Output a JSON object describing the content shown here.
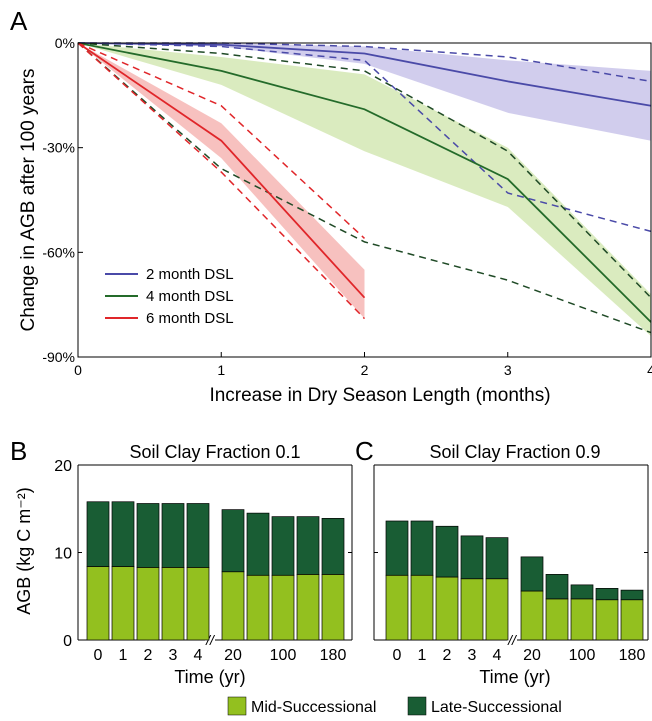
{
  "panels": {
    "A": "A",
    "B": "B",
    "C": "C"
  },
  "colors": {
    "dsl2": "#4a4aa8",
    "dsl2_band": "#c9c4ea",
    "dsl4": "#246b2a",
    "dsl4_band": "#d4e8b4",
    "dsl6": "#e0262a",
    "dsl6_band": "#f6b6b4",
    "dsl4_dash": "#1f4a26",
    "mid": "#93c01f",
    "late": "#195d34"
  },
  "chart_data": [
    {
      "type": "line",
      "panel": "A",
      "xlabel": "Increase in Dry Season Length (months)",
      "ylabel": "Change in AGB after 100 years",
      "xlim": [
        0,
        4
      ],
      "ylim": [
        -90,
        0
      ],
      "xticks": [
        "0",
        "1",
        "2",
        "3",
        "4"
      ],
      "yticks": [
        {
          "v": 0,
          "label": "0%"
        },
        {
          "v": -30,
          "label": "-30%"
        },
        {
          "v": -60,
          "label": "-60%"
        },
        {
          "v": -90,
          "label": "-90%"
        }
      ],
      "legend_position": "bottom-left",
      "series": [
        {
          "name": "2 month DSL",
          "color_key": "dsl2",
          "band_key": "dsl2_band",
          "x": [
            0,
            1,
            2,
            3,
            4
          ],
          "mean": [
            0,
            -0.5,
            -3,
            -11,
            -18
          ],
          "band_upper": [
            0,
            0,
            -1,
            -5,
            -8
          ],
          "band_lower": [
            0,
            -1,
            -6,
            -20,
            -28
          ],
          "dash_upper": [
            0,
            0,
            -1,
            -4,
            -11
          ],
          "dash_lower": [
            0,
            -1,
            -5,
            -43,
            -54
          ]
        },
        {
          "name": "4 month DSL",
          "color_key": "dsl4",
          "band_key": "dsl4_band",
          "x": [
            0,
            1,
            2,
            3,
            4
          ],
          "mean": [
            0,
            -8,
            -19,
            -39,
            -80
          ],
          "band_upper": [
            0,
            -4,
            -9,
            -30,
            -72
          ],
          "band_lower": [
            0,
            -12,
            -31,
            -47,
            -84
          ],
          "dash_upper": [
            0,
            -3,
            -8,
            -31,
            -73
          ],
          "dash_lower": [
            0,
            -36,
            -57,
            -68,
            -83
          ]
        },
        {
          "name": "6 month DSL",
          "color_key": "dsl6",
          "band_key": "dsl6_band",
          "x": [
            0,
            1,
            2
          ],
          "mean": [
            0,
            -28,
            -73
          ],
          "band_upper": [
            0,
            -23,
            -65
          ],
          "band_lower": [
            0,
            -33,
            -79
          ],
          "dash_upper": [
            0,
            -18,
            -56
          ],
          "dash_lower": [
            0,
            -37,
            -79
          ]
        }
      ]
    },
    {
      "type": "bar",
      "panel": "B",
      "stacked": true,
      "title": "Soil Clay Fraction 0.1",
      "ylabel": "AGB (kg C m⁻²)",
      "xlabel": "Time (yr)",
      "ylim": [
        0,
        20
      ],
      "yticks": [
        "0",
        "10",
        "20"
      ],
      "group1": {
        "categories": [
          "0",
          "1",
          "2",
          "3",
          "4"
        ],
        "mid": [
          8.4,
          8.4,
          8.3,
          8.3,
          8.3
        ],
        "late": [
          7.4,
          7.4,
          7.3,
          7.3,
          7.3
        ]
      },
      "group2": {
        "tick_labels": [
          "20",
          "100",
          "180"
        ],
        "bar_count": 5,
        "mid": [
          7.8,
          7.4,
          7.4,
          7.5,
          7.5
        ],
        "late": [
          7.1,
          7.1,
          6.7,
          6.6,
          6.4
        ]
      },
      "break_symbol": "//"
    },
    {
      "type": "bar",
      "panel": "C",
      "stacked": true,
      "title": "Soil Clay Fraction 0.9",
      "xlabel": "Time (yr)",
      "ylim": [
        0,
        20
      ],
      "group1": {
        "categories": [
          "0",
          "1",
          "2",
          "3",
          "4"
        ],
        "mid": [
          7.4,
          7.4,
          7.2,
          7.0,
          7.0
        ],
        "late": [
          6.2,
          6.2,
          5.8,
          4.9,
          4.7
        ]
      },
      "group2": {
        "tick_labels": [
          "20",
          "100",
          "180"
        ],
        "bar_count": 5,
        "mid": [
          5.6,
          4.7,
          4.7,
          4.6,
          4.6
        ],
        "late": [
          3.9,
          2.8,
          1.6,
          1.3,
          1.1
        ]
      },
      "break_symbol": "//"
    }
  ],
  "legend": [
    {
      "label": "Mid-Successional",
      "color_key": "mid"
    },
    {
      "label": "Late-Successional",
      "color_key": "late"
    }
  ]
}
